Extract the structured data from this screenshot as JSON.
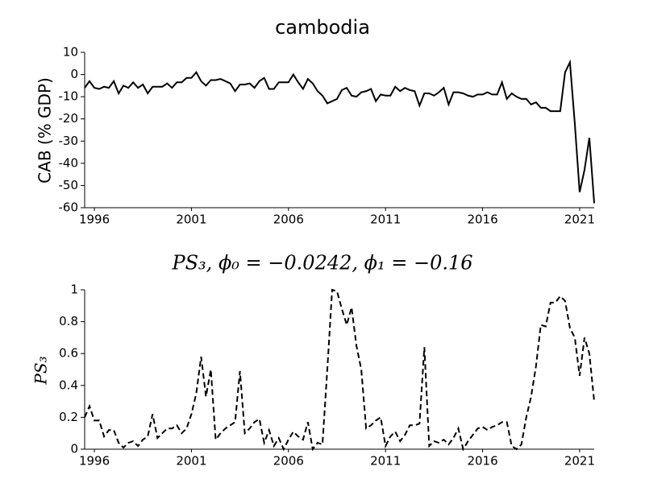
{
  "chart_data": [
    {
      "type": "line",
      "title": "cambodia",
      "y_label": "CAB (% GDP)",
      "color": "#000000",
      "linestyle": "solid",
      "xlim": [
        1995.5,
        2021.75
      ],
      "xticks": [
        1996,
        2001,
        2006,
        2011,
        2016,
        2021
      ],
      "ylim": [
        -60,
        10
      ],
      "yticks": [
        10,
        0,
        -10,
        -20,
        -30,
        -40,
        -50,
        -60
      ],
      "x": [
        1995.5,
        1995.75,
        1996,
        1996.25,
        1996.5,
        1996.75,
        1997,
        1997.25,
        1997.5,
        1997.75,
        1998,
        1998.25,
        1998.5,
        1998.75,
        1999,
        1999.25,
        1999.5,
        1999.75,
        2000,
        2000.25,
        2000.5,
        2000.75,
        2001,
        2001.25,
        2001.5,
        2001.75,
        2002,
        2002.25,
        2002.5,
        2002.75,
        2003,
        2003.25,
        2003.5,
        2003.75,
        2004,
        2004.25,
        2004.5,
        2004.75,
        2005,
        2005.25,
        2005.5,
        2005.75,
        2006,
        2006.25,
        2006.5,
        2006.75,
        2007,
        2007.25,
        2007.5,
        2007.75,
        2008,
        2008.25,
        2008.5,
        2008.75,
        2009,
        2009.25,
        2009.5,
        2009.75,
        2010,
        2010.25,
        2010.5,
        2010.75,
        2011,
        2011.25,
        2011.5,
        2011.75,
        2012,
        2012.25,
        2012.5,
        2012.75,
        2013,
        2013.25,
        2013.5,
        2013.75,
        2014,
        2014.25,
        2014.5,
        2014.75,
        2015,
        2015.25,
        2015.5,
        2015.75,
        2016,
        2016.25,
        2016.5,
        2016.75,
        2017,
        2017.25,
        2017.5,
        2017.75,
        2018,
        2018.25,
        2018.5,
        2018.75,
        2019,
        2019.25,
        2019.5,
        2019.75,
        2020,
        2020.25,
        2020.5,
        2020.75,
        2021,
        2021.25,
        2021.5,
        2021.75
      ],
      "values": [
        -6,
        -3,
        -6,
        -6.5,
        -5.5,
        -6,
        -3,
        -8.5,
        -5,
        -6,
        -3.5,
        -6,
        -4.5,
        -8.5,
        -5.5,
        -5.5,
        -5.5,
        -4,
        -6,
        -3.5,
        -3.5,
        -1.5,
        -1.5,
        1,
        -3,
        -5,
        -2.5,
        -2.5,
        -2,
        -3,
        -4,
        -7.5,
        -4.5,
        -4.5,
        -4,
        -6,
        -3,
        -1.5,
        -6.5,
        -6.5,
        -3.5,
        -3.5,
        -3.5,
        0,
        -3.5,
        -6.5,
        -2,
        -4,
        -7.5,
        -9.5,
        -13,
        -12,
        -11,
        -7,
        -6,
        -9.5,
        -10,
        -8,
        -7.5,
        -6.5,
        -12,
        -9,
        -9.5,
        -9.5,
        -5.5,
        -7.5,
        -6,
        -7,
        -7.5,
        -14,
        -8.5,
        -8.5,
        -9.5,
        -8,
        -6,
        -13.5,
        -8,
        -8,
        -8.5,
        -9.5,
        -10,
        -9,
        -9,
        -8,
        -9,
        -9,
        -3.5,
        -11,
        -8.5,
        -10,
        -11,
        -11,
        -13.5,
        -12.5,
        -15,
        -15,
        -16.5,
        -16.5,
        -16.5,
        1,
        5.5,
        -22,
        -53,
        -43,
        -28.5,
        -58
      ]
    },
    {
      "type": "line",
      "title": "PS₃, ϕ₀ = −0.0242, ϕ₁ = −0.16",
      "y_label": "PS₃",
      "color": "#000000",
      "linestyle": "dashed",
      "xlim": [
        1995.5,
        2021.75
      ],
      "xticks": [
        1996,
        2001,
        2006,
        2011,
        2016,
        2021
      ],
      "ylim": [
        0,
        1
      ],
      "yticks": [
        0,
        0.2,
        0.4,
        0.6,
        0.8,
        1
      ],
      "x": [
        1995.5,
        1995.75,
        1996,
        1996.25,
        1996.5,
        1996.75,
        1997,
        1997.25,
        1997.5,
        1997.75,
        1998,
        1998.25,
        1998.5,
        1998.75,
        1999,
        1999.25,
        1999.5,
        1999.75,
        2000,
        2000.25,
        2000.5,
        2000.75,
        2001,
        2001.25,
        2001.5,
        2001.75,
        2002,
        2002.25,
        2002.5,
        2002.75,
        2003,
        2003.25,
        2003.5,
        2003.75,
        2004,
        2004.25,
        2004.5,
        2004.75,
        2005,
        2005.25,
        2005.5,
        2005.75,
        2006,
        2006.25,
        2006.5,
        2006.75,
        2007,
        2007.25,
        2007.5,
        2007.75,
        2008,
        2008.25,
        2008.5,
        2008.75,
        2009,
        2009.25,
        2009.5,
        2009.75,
        2010,
        2010.25,
        2010.5,
        2010.75,
        2011,
        2011.25,
        2011.5,
        2011.75,
        2012,
        2012.25,
        2012.5,
        2012.75,
        2013,
        2013.25,
        2013.5,
        2013.75,
        2014,
        2014.25,
        2014.5,
        2014.75,
        2015,
        2015.25,
        2015.5,
        2015.75,
        2016,
        2016.25,
        2016.5,
        2016.75,
        2017,
        2017.25,
        2017.5,
        2017.75,
        2018,
        2018.25,
        2018.5,
        2018.75,
        2019,
        2019.25,
        2019.5,
        2019.75,
        2020,
        2020.25,
        2020.5,
        2020.75,
        2021,
        2021.25,
        2021.5,
        2021.75
      ],
      "values": [
        0.2,
        0.27,
        0.18,
        0.18,
        0.08,
        0.12,
        0.12,
        0.04,
        0.01,
        0.04,
        0.05,
        0.02,
        0.06,
        0.08,
        0.22,
        0.07,
        0.1,
        0.13,
        0.13,
        0.15,
        0.1,
        0.13,
        0.22,
        0.35,
        0.58,
        0.33,
        0.5,
        0.06,
        0.1,
        0.13,
        0.15,
        0.17,
        0.49,
        0.1,
        0.13,
        0.17,
        0.19,
        0.04,
        0.12,
        0.02,
        0.07,
        0,
        0.06,
        0.11,
        0.08,
        0.06,
        0.17,
        0,
        0.04,
        0.03,
        0.5,
        1,
        0.99,
        0.88,
        0.78,
        0.89,
        0.65,
        0.5,
        0.13,
        0.15,
        0.18,
        0.2,
        0.02,
        0.08,
        0.11,
        0.05,
        0.09,
        0.15,
        0.15,
        0.16,
        0.64,
        0.02,
        0.05,
        0.04,
        0.06,
        0.03,
        0.07,
        0.13,
        0,
        0.05,
        0.09,
        0.13,
        0.14,
        0.12,
        0.14,
        0.15,
        0.17,
        0.17,
        0.02,
        0,
        0.03,
        0.2,
        0.33,
        0.52,
        0.78,
        0.77,
        0.92,
        0.92,
        0.96,
        0.93,
        0.76,
        0.7,
        0.46,
        0.7,
        0.6,
        0.3
      ]
    }
  ]
}
